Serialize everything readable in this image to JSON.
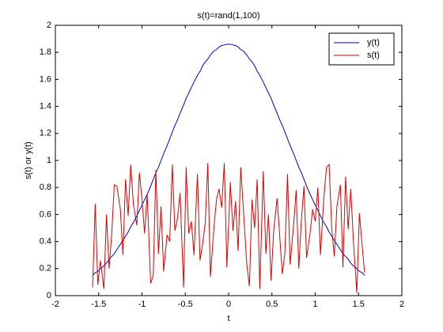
{
  "chart_data": {
    "type": "line",
    "title": "s(t)=rand(1,100)",
    "xlabel": "t",
    "ylabel": "s(t) or y(t)",
    "x": [
      -1.57,
      -1.54,
      -1.51,
      -1.48,
      -1.44,
      -1.41,
      -1.38,
      -1.35,
      -1.32,
      -1.29,
      -1.25,
      -1.22,
      -1.19,
      -1.16,
      -1.13,
      -1.1,
      -1.06,
      -1.03,
      -1.0,
      -0.97,
      -0.94,
      -0.9,
      -0.87,
      -0.84,
      -0.81,
      -0.78,
      -0.75,
      -0.71,
      -0.68,
      -0.65,
      -0.62,
      -0.59,
      -0.56,
      -0.52,
      -0.49,
      -0.46,
      -0.43,
      -0.4,
      -0.36,
      -0.33,
      -0.3,
      -0.27,
      -0.24,
      -0.21,
      -0.17,
      -0.14,
      -0.11,
      -0.08,
      -0.05,
      -0.02,
      0.02,
      0.05,
      0.08,
      0.11,
      0.14,
      0.17,
      0.21,
      0.24,
      0.27,
      0.3,
      0.33,
      0.36,
      0.4,
      0.43,
      0.46,
      0.49,
      0.52,
      0.56,
      0.59,
      0.62,
      0.65,
      0.68,
      0.71,
      0.75,
      0.78,
      0.81,
      0.84,
      0.87,
      0.9,
      0.94,
      0.97,
      1.0,
      1.03,
      1.06,
      1.1,
      1.13,
      1.16,
      1.19,
      1.22,
      1.25,
      1.29,
      1.32,
      1.35,
      1.38,
      1.41,
      1.44,
      1.48,
      1.51,
      1.54,
      1.57
    ],
    "series": [
      {
        "name": "y(t)",
        "color": "#0000cc",
        "values": [
          0.15,
          0.17,
          0.18,
          0.2,
          0.22,
          0.24,
          0.27,
          0.29,
          0.31,
          0.34,
          0.38,
          0.41,
          0.44,
          0.47,
          0.51,
          0.54,
          0.59,
          0.63,
          0.67,
          0.71,
          0.75,
          0.81,
          0.86,
          0.91,
          0.95,
          1.0,
          1.05,
          1.11,
          1.16,
          1.21,
          1.26,
          1.3,
          1.35,
          1.41,
          1.46,
          1.5,
          1.54,
          1.58,
          1.63,
          1.66,
          1.7,
          1.73,
          1.75,
          1.78,
          1.81,
          1.82,
          1.84,
          1.85,
          1.855,
          1.86,
          1.86,
          1.855,
          1.85,
          1.84,
          1.82,
          1.81,
          1.78,
          1.75,
          1.73,
          1.7,
          1.66,
          1.63,
          1.58,
          1.54,
          1.5,
          1.46,
          1.41,
          1.35,
          1.3,
          1.26,
          1.21,
          1.16,
          1.11,
          1.05,
          1.0,
          0.95,
          0.91,
          0.86,
          0.81,
          0.75,
          0.71,
          0.67,
          0.63,
          0.59,
          0.54,
          0.51,
          0.47,
          0.44,
          0.41,
          0.38,
          0.34,
          0.31,
          0.29,
          0.27,
          0.24,
          0.22,
          0.2,
          0.18,
          0.17,
          0.15
        ]
      },
      {
        "name": "s(t)",
        "color": "#dd0000",
        "values": [
          0.06,
          0.68,
          0.08,
          0.26,
          0.05,
          0.6,
          0.2,
          0.45,
          0.82,
          0.81,
          0.64,
          0.3,
          0.86,
          0.59,
          0.97,
          0.68,
          0.52,
          0.91,
          0.71,
          0.46,
          0.75,
          0.09,
          0.15,
          0.93,
          0.31,
          0.66,
          0.18,
          0.45,
          0.4,
          0.97,
          0.48,
          0.57,
          0.76,
          0.06,
          0.95,
          0.46,
          0.55,
          0.3,
          0.9,
          0.26,
          0.38,
          0.54,
          0.98,
          0.14,
          0.5,
          0.71,
          0.79,
          0.65,
          0.98,
          0.21,
          0.84,
          0.48,
          0.7,
          0.33,
          0.95,
          0.64,
          0.23,
          0.07,
          0.71,
          0.5,
          0.86,
          0.05,
          0.92,
          0.31,
          0.6,
          0.11,
          0.48,
          0.72,
          0.44,
          0.16,
          0.32,
          0.9,
          0.23,
          0.52,
          0.78,
          0.2,
          0.56,
          0.81,
          0.28,
          0.46,
          0.64,
          0.55,
          0.8,
          0.3,
          0.73,
          0.95,
          0.97,
          0.5,
          0.29,
          0.66,
          0.82,
          0.21,
          0.88,
          0.49,
          0.79,
          0.41,
          0.02,
          0.61,
          0.38,
          0.17
        ]
      }
    ],
    "xlim": [
      -2,
      2
    ],
    "xticks": [
      -2,
      -1.5,
      -1,
      -0.5,
      0,
      0.5,
      1,
      1.5,
      2
    ],
    "ylim": [
      0,
      2
    ],
    "yticks": [
      0,
      0.2,
      0.4,
      0.6,
      0.8,
      1,
      1.2,
      1.4,
      1.6,
      1.8,
      2
    ],
    "legend": "upper right",
    "grid": false
  }
}
